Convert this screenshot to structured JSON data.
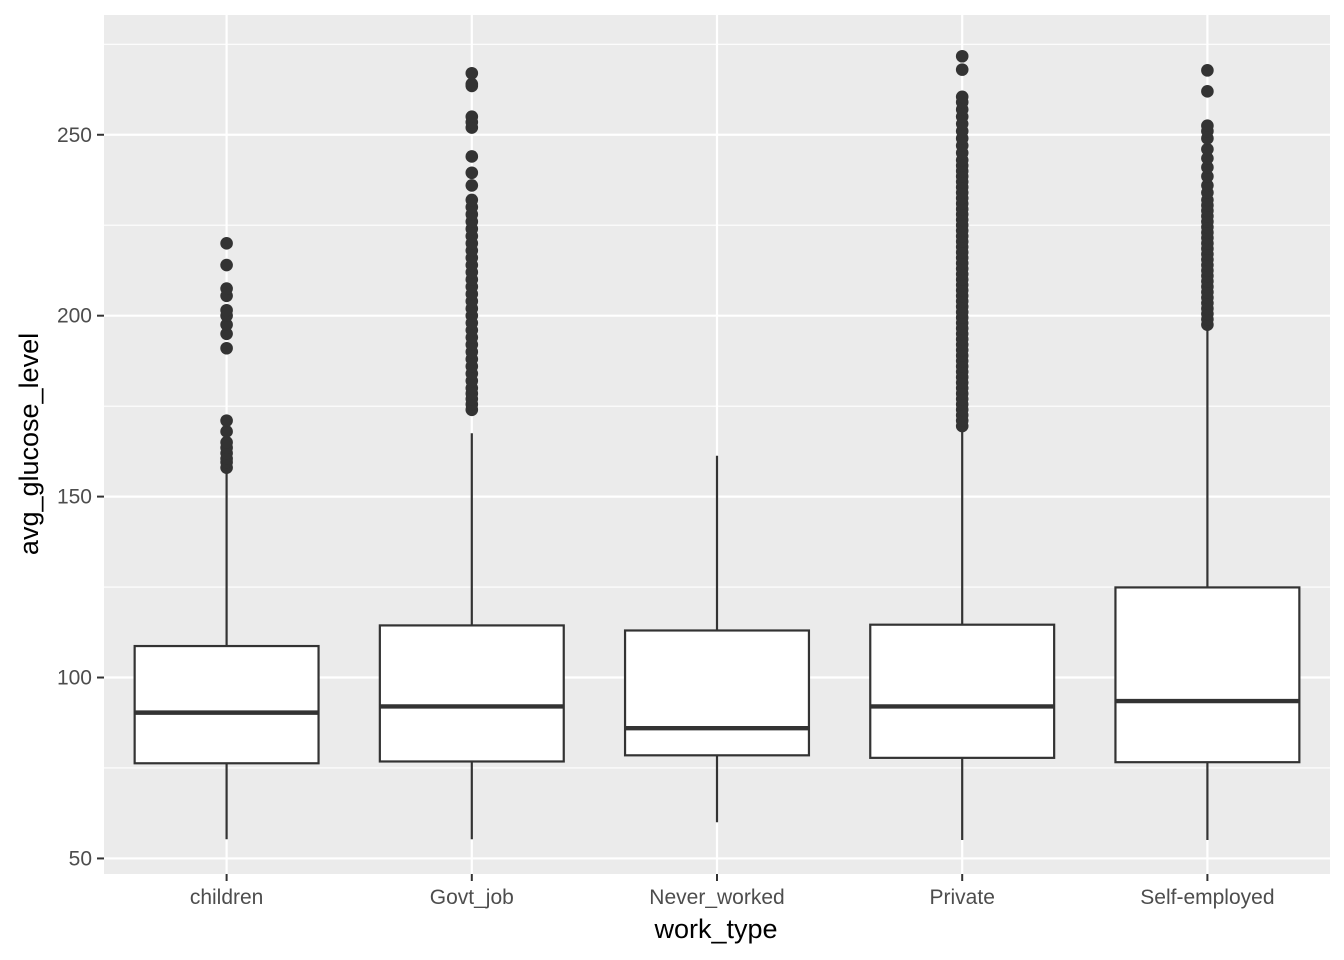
{
  "chart_data": {
    "type": "boxplot",
    "xlabel": "work_type",
    "ylabel": "avg_glucose_level",
    "ylim": [
      45.7,
      283.1
    ],
    "y_ticks": [
      50,
      100,
      150,
      200,
      250
    ],
    "y_tick_labels": [
      "50",
      "100",
      "150",
      "200",
      "250"
    ],
    "categories": [
      "children",
      "Govt_job",
      "Never_worked",
      "Private",
      "Self-employed"
    ],
    "grid": true,
    "legend": "none",
    "colors": {
      "panel_background": "#ebebeb",
      "grid": "#ffffff",
      "box_fill": "#ffffff",
      "box_line": "#333333",
      "outlier": "#333333"
    },
    "boxes": [
      {
        "category": "children",
        "whisker_low": 55.3,
        "q1": 76.3,
        "median": 90.3,
        "q3": 108.7,
        "whisker_high": 157.0,
        "outliers": [
          158,
          159.5,
          160.5,
          162,
          163.5,
          165,
          168,
          171,
          191,
          195,
          197.5,
          200,
          201.5,
          205.5,
          207.5,
          214,
          220
        ]
      },
      {
        "category": "Govt_job",
        "whisker_low": 55.3,
        "q1": 76.8,
        "median": 92.0,
        "q3": 114.4,
        "whisker_high": 167.5,
        "outliers": [
          174,
          175.5,
          177,
          178.5,
          180,
          182,
          184,
          186,
          188,
          190,
          192,
          194,
          196,
          198,
          200,
          202,
          204,
          206,
          208,
          210,
          212,
          214,
          216,
          218,
          220,
          222,
          224,
          226,
          228,
          230,
          232,
          236,
          239.5,
          244,
          252,
          253.5,
          255,
          263.5,
          264,
          267
        ]
      },
      {
        "category": "Never_worked",
        "whisker_low": 60.0,
        "q1": 78.5,
        "median": 86.0,
        "q3": 113.0,
        "whisker_high": 161.3,
        "outliers": []
      },
      {
        "category": "Private",
        "whisker_low": 55.1,
        "q1": 77.8,
        "median": 92.0,
        "q3": 114.6,
        "whisker_high": 169.0,
        "outliers": [
          169.5,
          171,
          172.5,
          174,
          175.5,
          177,
          178.5,
          180,
          181.5,
          183,
          184.5,
          186,
          187.5,
          189,
          190.5,
          192,
          193.5,
          195,
          196.5,
          198,
          199.5,
          201,
          202.5,
          204,
          205.5,
          207,
          208.5,
          210,
          211.5,
          213,
          214.5,
          216,
          217.5,
          219,
          220.5,
          222,
          223.5,
          225,
          226.5,
          228,
          229.5,
          231,
          232.5,
          234,
          235.5,
          237,
          238.5,
          240,
          241.5,
          243,
          245,
          247,
          249,
          251,
          253,
          255,
          257,
          259,
          260.5,
          268,
          271.7
        ]
      },
      {
        "category": "Self-employed",
        "whisker_low": 55.1,
        "q1": 76.6,
        "median": 93.5,
        "q3": 124.9,
        "whisker_high": 197.0,
        "outliers": [
          197.5,
          199,
          200.5,
          202,
          203.5,
          205,
          206.5,
          208,
          209.5,
          211,
          212.5,
          214,
          215.5,
          217,
          218.5,
          220,
          221.5,
          223,
          224.5,
          226,
          227.5,
          229,
          230.5,
          232,
          234,
          236,
          238.5,
          241,
          243.5,
          246,
          249,
          251,
          252.5,
          262,
          267.8
        ]
      }
    ]
  }
}
